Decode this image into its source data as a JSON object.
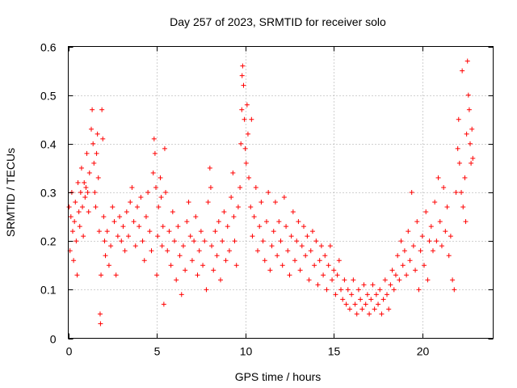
{
  "chart_data": {
    "type": "scatter",
    "title": "Day 257 of 2023, SRMTID for receiver solo",
    "xlabel": "GPS time / hours",
    "ylabel": "SRMTID / TECUs",
    "xlim": [
      0,
      24
    ],
    "ylim": [
      0,
      0.6
    ],
    "xticks": [
      0,
      5,
      10,
      15,
      20
    ],
    "yticks": [
      0,
      0.1,
      0.2,
      0.3,
      0.4,
      0.5,
      0.6
    ],
    "xtick_labels": [
      "0",
      "5",
      "10",
      "15",
      "20"
    ],
    "ytick_labels": [
      "0",
      "0.1",
      "0.2",
      "0.3",
      "0.4",
      "0.5",
      "0.6"
    ],
    "grid": true,
    "marker": "+",
    "color": "#ff0000",
    "series": [
      {
        "name": "SRMTID",
        "points": [
          [
            0.05,
            0.27
          ],
          [
            0.1,
            0.18
          ],
          [
            0.15,
            0.25
          ],
          [
            0.2,
            0.3
          ],
          [
            0.25,
            0.22
          ],
          [
            0.3,
            0.16
          ],
          [
            0.35,
            0.24
          ],
          [
            0.4,
            0.28
          ],
          [
            0.45,
            0.2
          ],
          [
            0.5,
            0.13
          ],
          [
            0.55,
            0.32
          ],
          [
            0.6,
            0.26
          ],
          [
            0.65,
            0.23
          ],
          [
            0.7,
            0.3
          ],
          [
            0.75,
            0.35
          ],
          [
            0.8,
            0.27
          ],
          [
            0.85,
            0.21
          ],
          [
            0.9,
            0.32
          ],
          [
            0.95,
            0.29
          ],
          [
            1.0,
            0.31
          ],
          [
            1.05,
            0.38
          ],
          [
            1.1,
            0.3
          ],
          [
            1.15,
            0.26
          ],
          [
            1.2,
            0.34
          ],
          [
            1.3,
            0.43
          ],
          [
            1.35,
            0.47
          ],
          [
            1.4,
            0.4
          ],
          [
            1.45,
            0.36
          ],
          [
            1.5,
            0.3
          ],
          [
            1.55,
            0.27
          ],
          [
            1.6,
            0.38
          ],
          [
            1.65,
            0.42
          ],
          [
            1.7,
            0.33
          ],
          [
            1.75,
            0.22
          ],
          [
            1.8,
            0.05
          ],
          [
            1.82,
            0.03
          ],
          [
            1.85,
            0.13
          ],
          [
            1.9,
            0.47
          ],
          [
            1.95,
            0.41
          ],
          [
            2.0,
            0.25
          ],
          [
            2.05,
            0.2
          ],
          [
            2.1,
            0.17
          ],
          [
            2.2,
            0.22
          ],
          [
            2.3,
            0.15
          ],
          [
            2.4,
            0.19
          ],
          [
            2.5,
            0.27
          ],
          [
            2.6,
            0.24
          ],
          [
            2.7,
            0.13
          ],
          [
            2.8,
            0.21
          ],
          [
            2.9,
            0.25
          ],
          [
            3.0,
            0.2
          ],
          [
            3.1,
            0.23
          ],
          [
            3.2,
            0.18
          ],
          [
            3.3,
            0.26
          ],
          [
            3.4,
            0.21
          ],
          [
            3.5,
            0.28
          ],
          [
            3.6,
            0.31
          ],
          [
            3.7,
            0.24
          ],
          [
            3.8,
            0.19
          ],
          [
            3.9,
            0.27
          ],
          [
            4.0,
            0.23
          ],
          [
            4.1,
            0.29
          ],
          [
            4.2,
            0.2
          ],
          [
            4.3,
            0.16
          ],
          [
            4.4,
            0.25
          ],
          [
            4.5,
            0.3
          ],
          [
            4.6,
            0.22
          ],
          [
            4.7,
            0.18
          ],
          [
            4.8,
            0.34
          ],
          [
            4.85,
            0.41
          ],
          [
            4.9,
            0.38
          ],
          [
            4.95,
            0.31
          ],
          [
            5.0,
            0.13
          ],
          [
            5.05,
            0.21
          ],
          [
            5.1,
            0.27
          ],
          [
            5.2,
            0.33
          ],
          [
            5.25,
            0.29
          ],
          [
            5.3,
            0.19
          ],
          [
            5.35,
            0.23
          ],
          [
            5.4,
            0.07
          ],
          [
            5.45,
            0.39
          ],
          [
            5.5,
            0.3
          ],
          [
            5.6,
            0.18
          ],
          [
            5.7,
            0.22
          ],
          [
            5.8,
            0.15
          ],
          [
            5.9,
            0.26
          ],
          [
            6.0,
            0.2
          ],
          [
            6.1,
            0.12
          ],
          [
            6.2,
            0.23
          ],
          [
            6.3,
            0.17
          ],
          [
            6.4,
            0.09
          ],
          [
            6.5,
            0.19
          ],
          [
            6.6,
            0.14
          ],
          [
            6.7,
            0.24
          ],
          [
            6.8,
            0.28
          ],
          [
            6.9,
            0.21
          ],
          [
            7.0,
            0.16
          ],
          [
            7.1,
            0.2
          ],
          [
            7.2,
            0.25
          ],
          [
            7.3,
            0.13
          ],
          [
            7.4,
            0.18
          ],
          [
            7.5,
            0.22
          ],
          [
            7.6,
            0.15
          ],
          [
            7.7,
            0.2
          ],
          [
            7.8,
            0.1
          ],
          [
            7.9,
            0.28
          ],
          [
            8.0,
            0.35
          ],
          [
            8.05,
            0.31
          ],
          [
            8.1,
            0.19
          ],
          [
            8.2,
            0.14
          ],
          [
            8.3,
            0.22
          ],
          [
            8.4,
            0.17
          ],
          [
            8.5,
            0.24
          ],
          [
            8.6,
            0.12
          ],
          [
            8.7,
            0.2
          ],
          [
            8.8,
            0.26
          ],
          [
            8.9,
            0.16
          ],
          [
            9.0,
            0.23
          ],
          [
            9.1,
            0.18
          ],
          [
            9.2,
            0.29
          ],
          [
            9.3,
            0.34
          ],
          [
            9.35,
            0.25
          ],
          [
            9.4,
            0.2
          ],
          [
            9.5,
            0.15
          ],
          [
            9.6,
            0.27
          ],
          [
            9.7,
            0.31
          ],
          [
            9.75,
            0.4
          ],
          [
            9.8,
            0.47
          ],
          [
            9.82,
            0.54
          ],
          [
            9.85,
            0.56
          ],
          [
            9.9,
            0.52
          ],
          [
            9.95,
            0.45
          ],
          [
            10.0,
            0.39
          ],
          [
            10.05,
            0.36
          ],
          [
            10.1,
            0.48
          ],
          [
            10.15,
            0.42
          ],
          [
            10.2,
            0.33
          ],
          [
            10.3,
            0.27
          ],
          [
            10.35,
            0.45
          ],
          [
            10.4,
            0.21
          ],
          [
            10.5,
            0.25
          ],
          [
            10.6,
            0.31
          ],
          [
            10.7,
            0.18
          ],
          [
            10.8,
            0.23
          ],
          [
            10.9,
            0.28
          ],
          [
            11.0,
            0.2
          ],
          [
            11.1,
            0.16
          ],
          [
            11.2,
            0.24
          ],
          [
            11.3,
            0.3
          ],
          [
            11.4,
            0.14
          ],
          [
            11.5,
            0.19
          ],
          [
            11.6,
            0.22
          ],
          [
            11.7,
            0.28
          ],
          [
            11.8,
            0.17
          ],
          [
            11.9,
            0.24
          ],
          [
            12.0,
            0.2
          ],
          [
            12.1,
            0.15
          ],
          [
            12.2,
            0.29
          ],
          [
            12.3,
            0.23
          ],
          [
            12.4,
            0.18
          ],
          [
            12.5,
            0.13
          ],
          [
            12.6,
            0.21
          ],
          [
            12.7,
            0.26
          ],
          [
            12.8,
            0.16
          ],
          [
            12.9,
            0.2
          ],
          [
            13.0,
            0.24
          ],
          [
            13.1,
            0.14
          ],
          [
            13.2,
            0.19
          ],
          [
            13.3,
            0.23
          ],
          [
            13.4,
            0.17
          ],
          [
            13.5,
            0.21
          ],
          [
            13.6,
            0.12
          ],
          [
            13.7,
            0.18
          ],
          [
            13.8,
            0.22
          ],
          [
            13.9,
            0.15
          ],
          [
            14.0,
            0.2
          ],
          [
            14.1,
            0.11
          ],
          [
            14.2,
            0.16
          ],
          [
            14.3,
            0.19
          ],
          [
            14.4,
            0.13
          ],
          [
            14.5,
            0.17
          ],
          [
            14.6,
            0.1
          ],
          [
            14.7,
            0.15
          ],
          [
            14.8,
            0.19
          ],
          [
            14.9,
            0.12
          ],
          [
            15.0,
            0.14
          ],
          [
            15.1,
            0.09
          ],
          [
            15.2,
            0.13
          ],
          [
            15.3,
            0.16
          ],
          [
            15.4,
            0.1
          ],
          [
            15.5,
            0.08
          ],
          [
            15.6,
            0.12
          ],
          [
            15.7,
            0.07
          ],
          [
            15.8,
            0.1
          ],
          [
            15.9,
            0.06
          ],
          [
            16.0,
            0.09
          ],
          [
            16.1,
            0.12
          ],
          [
            16.2,
            0.07
          ],
          [
            16.3,
            0.05
          ],
          [
            16.4,
            0.1
          ],
          [
            16.5,
            0.08
          ],
          [
            16.6,
            0.06
          ],
          [
            16.7,
            0.11
          ],
          [
            16.8,
            0.07
          ],
          [
            16.9,
            0.09
          ],
          [
            17.0,
            0.05
          ],
          [
            17.1,
            0.08
          ],
          [
            17.2,
            0.11
          ],
          [
            17.3,
            0.06
          ],
          [
            17.4,
            0.09
          ],
          [
            17.5,
            0.07
          ],
          [
            17.6,
            0.1
          ],
          [
            17.7,
            0.05
          ],
          [
            17.8,
            0.08
          ],
          [
            17.9,
            0.12
          ],
          [
            18.0,
            0.09
          ],
          [
            18.1,
            0.06
          ],
          [
            18.2,
            0.11
          ],
          [
            18.3,
            0.14
          ],
          [
            18.4,
            0.1
          ],
          [
            18.5,
            0.13
          ],
          [
            18.6,
            0.17
          ],
          [
            18.7,
            0.12
          ],
          [
            18.8,
            0.2
          ],
          [
            18.9,
            0.15
          ],
          [
            19.0,
            0.18
          ],
          [
            19.1,
            0.13
          ],
          [
            19.2,
            0.22
          ],
          [
            19.3,
            0.16
          ],
          [
            19.4,
            0.3
          ],
          [
            19.5,
            0.19
          ],
          [
            19.6,
            0.14
          ],
          [
            19.7,
            0.24
          ],
          [
            19.8,
            0.1
          ],
          [
            19.9,
            0.18
          ],
          [
            20.0,
            0.21
          ],
          [
            20.1,
            0.15
          ],
          [
            20.2,
            0.26
          ],
          [
            20.3,
            0.12
          ],
          [
            20.4,
            0.2
          ],
          [
            20.5,
            0.23
          ],
          [
            20.6,
            0.18
          ],
          [
            20.7,
            0.28
          ],
          [
            20.8,
            0.2
          ],
          [
            20.9,
            0.33
          ],
          [
            21.0,
            0.24
          ],
          [
            21.1,
            0.19
          ],
          [
            21.2,
            0.31
          ],
          [
            21.3,
            0.22
          ],
          [
            21.4,
            0.27
          ],
          [
            21.5,
            0.17
          ],
          [
            21.6,
            0.21
          ],
          [
            21.7,
            0.12
          ],
          [
            21.8,
            0.1
          ],
          [
            21.9,
            0.3
          ],
          [
            22.0,
            0.39
          ],
          [
            22.05,
            0.45
          ],
          [
            22.1,
            0.36
          ],
          [
            22.2,
            0.3
          ],
          [
            22.25,
            0.55
          ],
          [
            22.3,
            0.27
          ],
          [
            22.4,
            0.33
          ],
          [
            22.45,
            0.24
          ],
          [
            22.5,
            0.42
          ],
          [
            22.55,
            0.57
          ],
          [
            22.6,
            0.5
          ],
          [
            22.65,
            0.47
          ],
          [
            22.7,
            0.4
          ],
          [
            22.75,
            0.36
          ],
          [
            22.8,
            0.43
          ],
          [
            22.85,
            0.37
          ]
        ]
      }
    ]
  }
}
